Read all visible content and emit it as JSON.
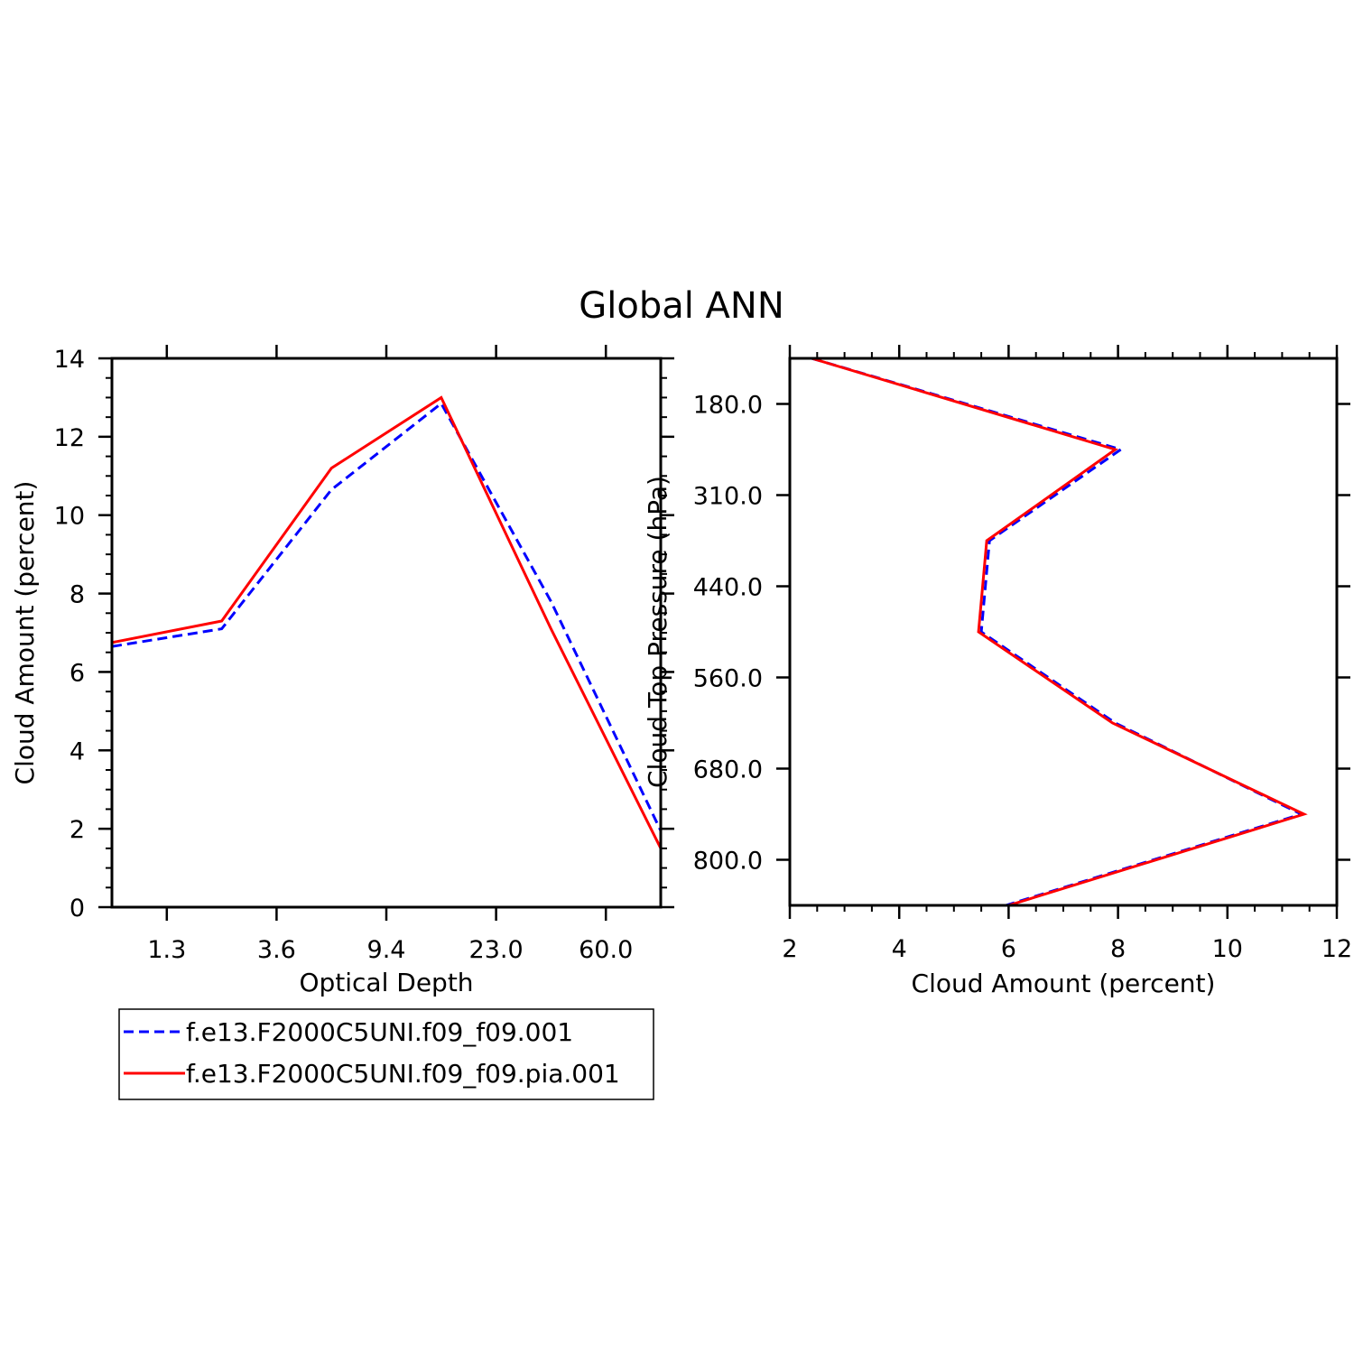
{
  "title": "Global ANN",
  "colors": {
    "series_a": "#0000ff",
    "series_b": "#ff0000",
    "axes": "#000000"
  },
  "legend": {
    "items": [
      {
        "label": "f.e13.F2000C5UNI.f09_f09.001",
        "color": "#0000ff",
        "style": "dashed"
      },
      {
        "label": "f.e13.F2000C5UNI.f09_f09.pia.001",
        "color": "#ff0000",
        "style": "solid"
      }
    ]
  },
  "chart_data": [
    {
      "type": "line",
      "xlabel": "Optical Depth",
      "ylabel": "Cloud Amount (percent)",
      "ylim": [
        0,
        14
      ],
      "yticks": [
        0,
        2,
        4,
        6,
        8,
        10,
        12,
        14
      ],
      "xtick_labels": [
        "1.3",
        "3.6",
        "9.4",
        "23.0",
        "60.0"
      ],
      "x": [
        0,
        1,
        2,
        3,
        4,
        5
      ],
      "xlim": [
        0,
        5
      ],
      "series": [
        {
          "name": "f.e13.F2000C5UNI.f09_f09.001",
          "style": "dashed",
          "values": [
            6.65,
            7.1,
            10.65,
            12.85,
            7.8,
            1.95
          ]
        },
        {
          "name": "f.e13.F2000C5UNI.f09_f09.pia.001",
          "style": "solid",
          "values": [
            6.75,
            7.3,
            11.2,
            13.0,
            7.1,
            1.5
          ]
        }
      ]
    },
    {
      "type": "line",
      "xlabel": "Cloud Amount (percent)",
      "ylabel": "Cloud Top Pressure (hPa)",
      "xlim": [
        2,
        12
      ],
      "xticks": [
        2,
        4,
        6,
        8,
        10,
        12
      ],
      "ytick_labels": [
        "180.0",
        "310.0",
        "440.0",
        "560.0",
        "680.0",
        "800.0"
      ],
      "y": [
        0,
        1,
        2,
        3,
        4,
        5,
        6
      ],
      "series": [
        {
          "name": "f.e13.F2000C5UNI.f09_f09.001",
          "style": "dashed",
          "values": [
            2.4,
            8.05,
            5.65,
            5.5,
            7.95,
            11.35,
            5.95
          ]
        },
        {
          "name": "f.e13.F2000C5UNI.f09_f09.pia.001",
          "style": "solid",
          "values": [
            2.4,
            7.95,
            5.6,
            5.45,
            7.9,
            11.4,
            6.0
          ]
        }
      ]
    }
  ]
}
